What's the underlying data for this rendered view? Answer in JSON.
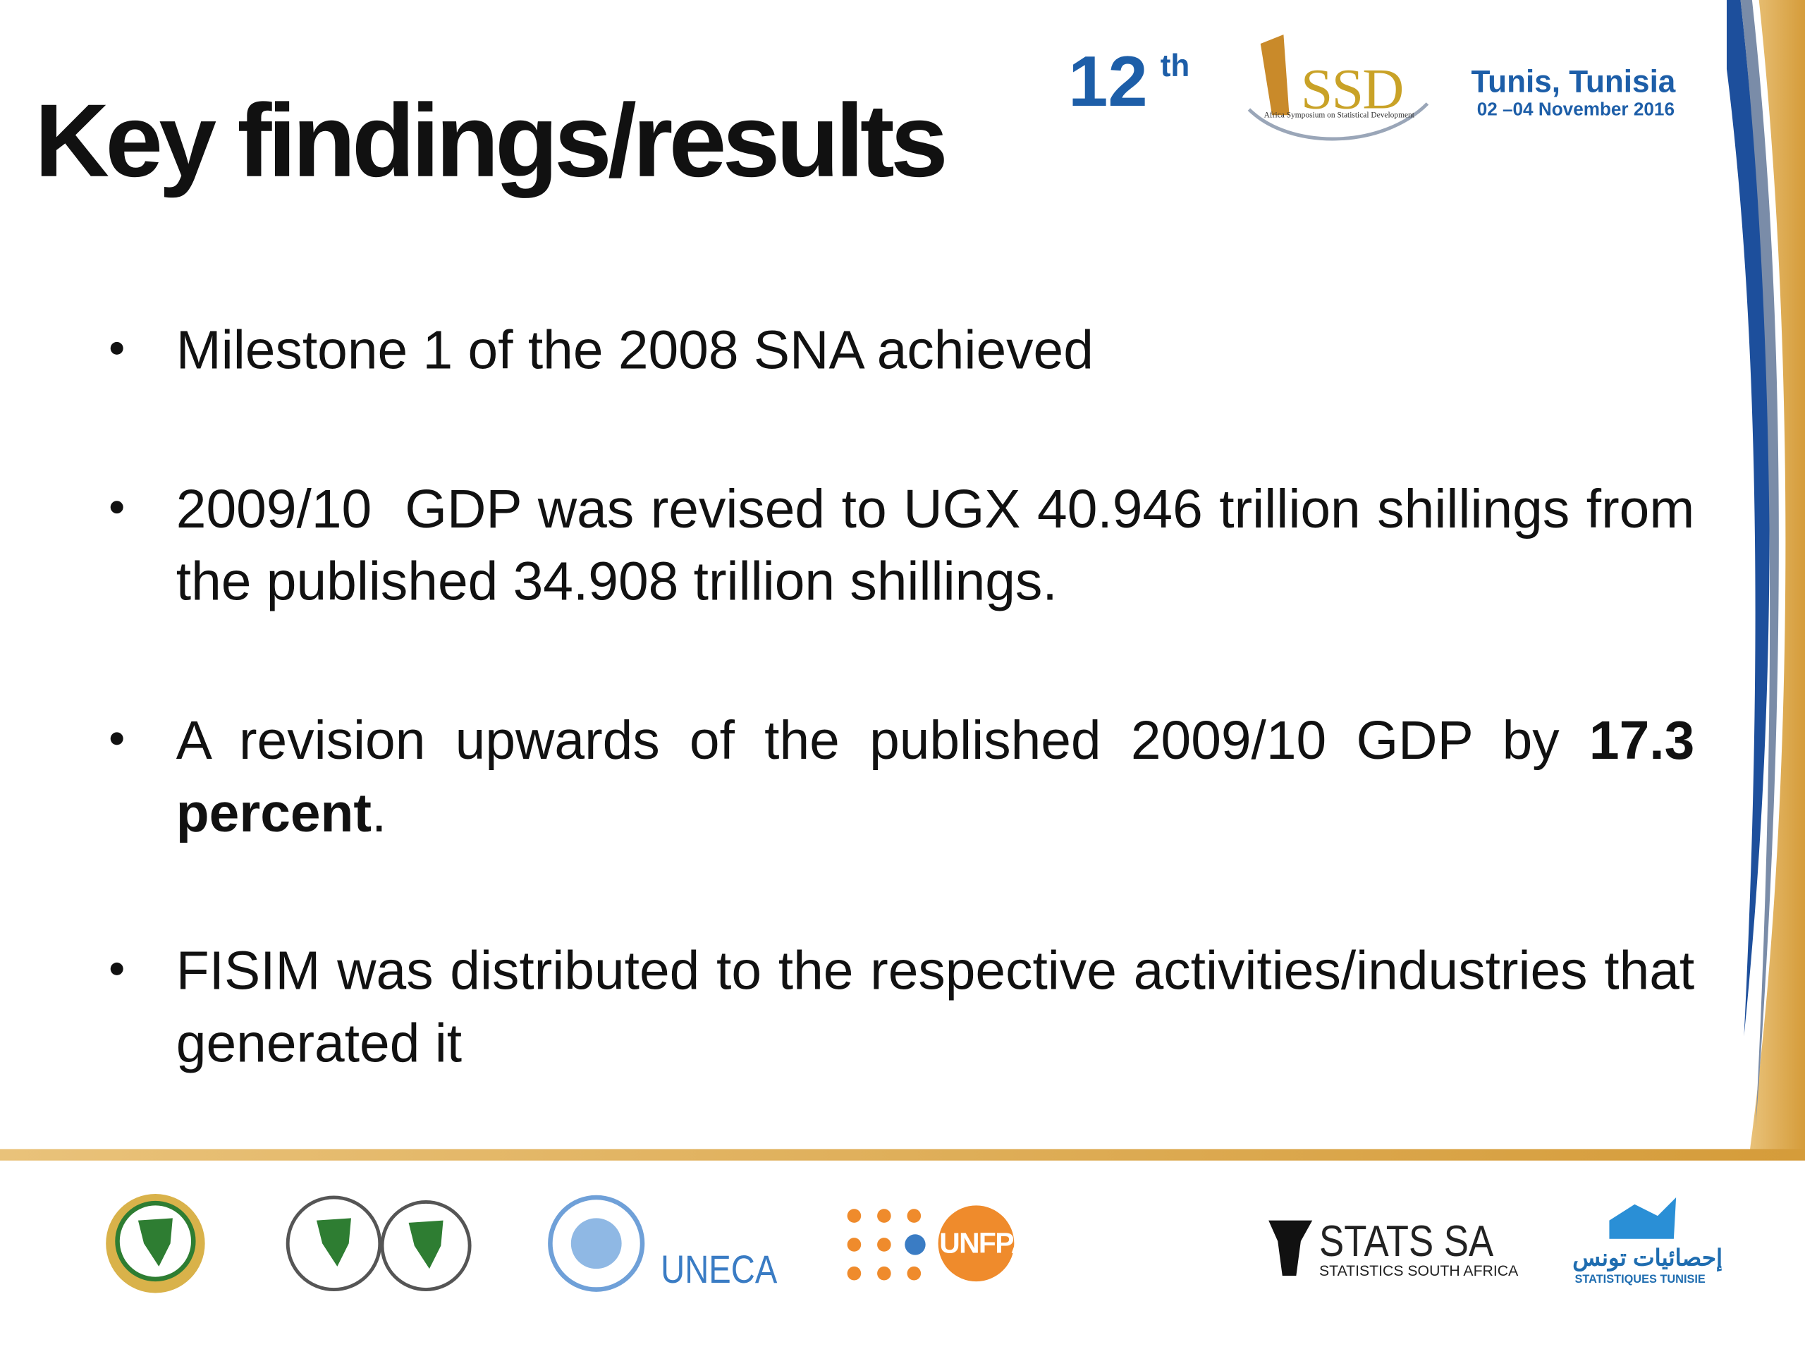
{
  "header": {
    "title": "Key findings/results",
    "edition": "12",
    "edition_suffix": "th",
    "logo_name": "SSD",
    "logo_caption": "Africa Symposium on Statistical Development",
    "city": "Tunis, Tunisia",
    "dates": "02 –04 November 2016"
  },
  "bullets": [
    {
      "text": "Milestone 1 of the 2008 SNA achieved"
    },
    {
      "text": "2009/10  GDP was revised to UGX 40.946 trillion shillings from the published 34.908 trillion shillings."
    },
    {
      "text": "A revision upwards of the published 2009/10 GDP by ",
      "bold": "17.3 percent",
      "tail": "."
    },
    {
      "text": "FISIM was distributed to the respective activities/industries that generated it"
    }
  ],
  "footer": {
    "uneca": "UNECA",
    "unfpa": "UNFPA",
    "stats_sa": "STATS SA",
    "stats_sa_caption": "STATISTICS SOUTH AFRICA",
    "tunisia_arabic": "إحصائيات تونس",
    "tunisia_caption": "STATISTIQUES TUNISIE"
  }
}
